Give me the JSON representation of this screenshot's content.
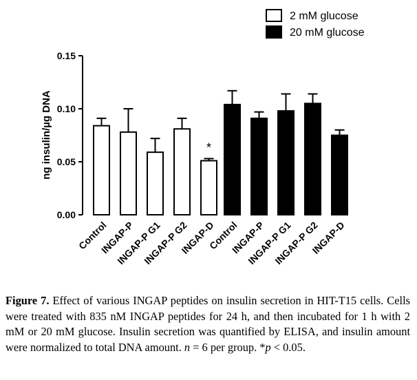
{
  "chart_data": {
    "type": "bar",
    "ylabel": "ng insulin/µg DNA",
    "ylim": [
      0,
      0.15
    ],
    "yticks": [
      "0.00",
      "0.05",
      "0.10",
      "0.15"
    ],
    "ytick_values": [
      0,
      0.05,
      0.1,
      0.15
    ],
    "categories": [
      "Control",
      "INGAP-P",
      "INGAP-P G1",
      "INGAP-P G2",
      "INGAP-D"
    ],
    "series": [
      {
        "name": "2 mM glucose",
        "fill": "#ffffff",
        "values": [
          0.084,
          0.078,
          0.059,
          0.081,
          0.051
        ],
        "errors": [
          0.007,
          0.022,
          0.013,
          0.01,
          0.002
        ],
        "annotations": [
          "",
          "",
          "",
          "",
          "*"
        ]
      },
      {
        "name": "20 mM glucose",
        "fill": "#000000",
        "values": [
          0.104,
          0.091,
          0.098,
          0.105,
          0.075
        ],
        "errors": [
          0.013,
          0.006,
          0.016,
          0.009,
          0.005
        ],
        "annotations": [
          "",
          "",
          "",
          "",
          ""
        ]
      }
    ],
    "legend_position": "top-right",
    "grid": false
  },
  "caption": {
    "label": "Figure 7.",
    "text_1": " Effect of various INGAP peptides on insulin secretion in HIT-T15 cells. Cells were treated with 835 nM INGAP peptides for 24 h, and then incubated for 1 h with 2 mM or 20 mM glucose. Insulin secretion was quantified by ELISA, and insulin amount were normalized to total DNA amount. ",
    "n_var": "n",
    "text_2": " = 6 per group. *",
    "p_var": "p",
    "text_3": " < 0.05."
  }
}
